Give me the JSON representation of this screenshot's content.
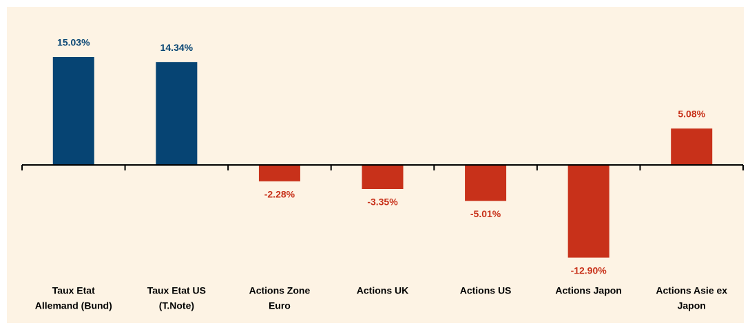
{
  "chart_data": {
    "type": "bar",
    "categories": [
      [
        "Taux Etat",
        "Allemand (Bund)"
      ],
      [
        "Taux Etat US",
        "(T.Note)"
      ],
      [
        "Actions Zone",
        "Euro"
      ],
      [
        "Actions UK"
      ],
      [
        "Actions US"
      ],
      [
        "Actions Japon"
      ],
      [
        "Actions Asie ex",
        "Japon"
      ]
    ],
    "values": [
      15.03,
      14.34,
      -2.28,
      -3.35,
      -5.01,
      -12.9,
      5.08
    ],
    "value_labels": [
      "15.03%",
      "14.34%",
      "-2.28%",
      "-3.35%",
      "-5.01%",
      "-12.90%",
      "5.08%"
    ],
    "colors": [
      "#064473",
      "#064473",
      "#c8311a",
      "#c8311a",
      "#c8311a",
      "#c8311a",
      "#c8311a"
    ]
  }
}
